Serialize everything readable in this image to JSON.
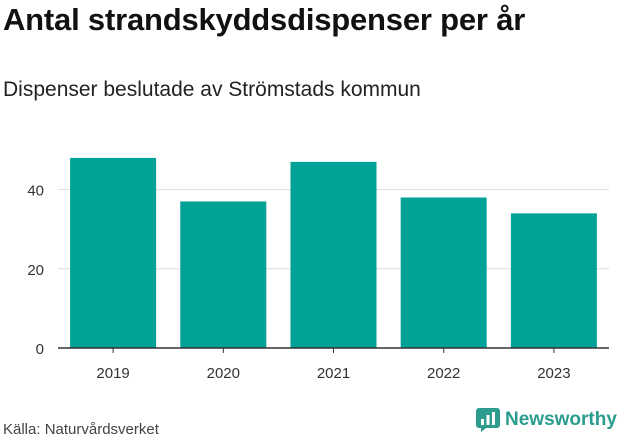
{
  "title": "Antal strandskyddsdispenser per år",
  "subtitle": "Dispenser beslutade av Strömstads kommun",
  "source": "Källa: Naturvårdsverket",
  "brand": {
    "name": "Newsworthy",
    "icon": "newsworthy-logo-icon"
  },
  "colors": {
    "bar": "#00a196",
    "grid": "#dddddd",
    "axis": "#333333",
    "brand": "#2b9c8e"
  },
  "chart_data": {
    "type": "bar",
    "categories": [
      "2019",
      "2020",
      "2021",
      "2022",
      "2023"
    ],
    "values": [
      48,
      37,
      47,
      38,
      34
    ],
    "title": "Antal strandskyddsdispenser per år",
    "xlabel": "",
    "ylabel": "",
    "ylim": [
      0,
      50
    ],
    "yticks": [
      0,
      20,
      40
    ],
    "grid": true,
    "legend": "none"
  }
}
